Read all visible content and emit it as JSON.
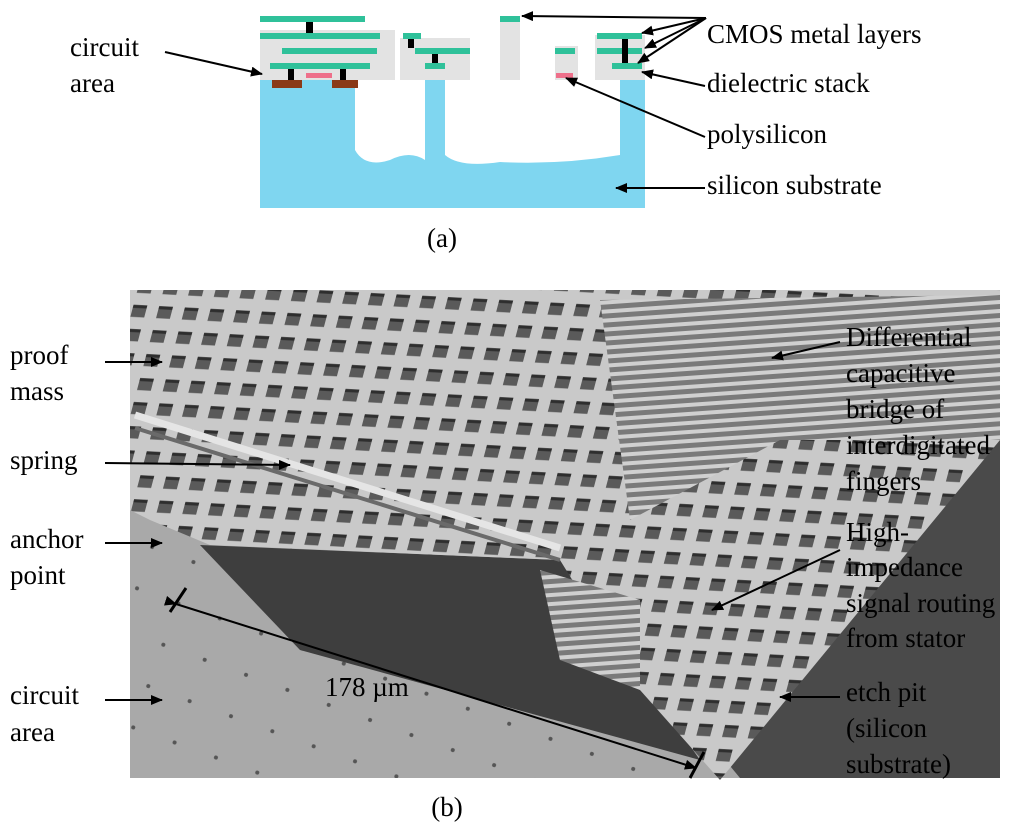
{
  "panel_a": {
    "caption": "(a)",
    "labels": {
      "circuit_area": [
        "circuit",
        "area"
      ],
      "cmos_metal_layers": "CMOS metal layers",
      "dielectric_stack": "dielectric stack",
      "polysilicon": "polysilicon",
      "silicon_substrate": "silicon substrate"
    }
  },
  "panel_b": {
    "caption": "(b)",
    "scale": "178 µm",
    "labels": {
      "proof_mass": [
        "proof",
        "mass"
      ],
      "spring": [
        "spring"
      ],
      "anchor_point": [
        "anchor",
        "point"
      ],
      "circuit_area": [
        "circuit",
        "area"
      ],
      "differential": [
        "Differential",
        "capacitive",
        "bridge of",
        "interdigitated",
        "fingers"
      ],
      "high_impedance": [
        "High-",
        "impedance",
        "signal routing",
        "from stator"
      ],
      "etch_pit": [
        "etch pit",
        "(silicon",
        "substrate)"
      ]
    }
  }
}
